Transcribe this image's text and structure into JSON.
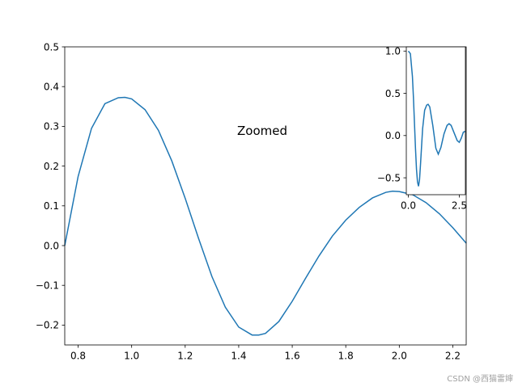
{
  "chart_data": [
    {
      "type": "line",
      "role": "main",
      "title": "",
      "xlabel": "",
      "ylabel": "",
      "xlim": [
        0.75,
        2.25
      ],
      "ylim": [
        -0.25,
        0.5
      ],
      "xticks": [
        "0.8",
        "1.0",
        "1.2",
        "1.4",
        "1.6",
        "1.8",
        "2.0",
        "2.2"
      ],
      "yticks": [
        "0.5",
        "0.4",
        "0.3",
        "0.2",
        "0.1",
        "0.0",
        "−0.1",
        "−0.2"
      ],
      "annotation": "Zoomed",
      "series": [
        {
          "color": "#1f77b4",
          "x": [
            0.75,
            0.8,
            0.85,
            0.9,
            0.95,
            0.975,
            1.0,
            1.05,
            1.1,
            1.15,
            1.2,
            1.25,
            1.3,
            1.35,
            1.4,
            1.45,
            1.475,
            1.5,
            1.55,
            1.6,
            1.65,
            1.7,
            1.75,
            1.8,
            1.85,
            1.9,
            1.95,
            1.975,
            2.0,
            2.05,
            2.1,
            2.15,
            2.2,
            2.25
          ],
          "y": [
            0.0,
            0.174,
            0.295,
            0.357,
            0.372,
            0.373,
            0.369,
            0.342,
            0.29,
            0.213,
            0.119,
            0.018,
            -0.078,
            -0.155,
            -0.205,
            -0.225,
            -0.225,
            -0.221,
            -0.191,
            -0.14,
            -0.082,
            -0.026,
            0.024,
            0.064,
            0.096,
            0.12,
            0.134,
            0.137,
            0.136,
            0.128,
            0.108,
            0.08,
            0.045,
            0.006
          ]
        }
      ]
    },
    {
      "type": "line",
      "role": "inset",
      "title": "",
      "xlabel": "",
      "ylabel": "",
      "xlim": [
        -0.1,
        2.8
      ],
      "ylim": [
        -0.7,
        1.05
      ],
      "xticks": [
        "0.0",
        "2.5"
      ],
      "yticks": [
        "1.0",
        "0.5",
        "0.0",
        "−0.5"
      ],
      "series": [
        {
          "color": "#1f77b4",
          "x": [
            0.0,
            0.1,
            0.2,
            0.25,
            0.3,
            0.35,
            0.4,
            0.45,
            0.5,
            0.55,
            0.6,
            0.7,
            0.8,
            0.9,
            0.97,
            1.05,
            1.2,
            1.35,
            1.47,
            1.6,
            1.75,
            1.9,
            2.0,
            2.1,
            2.25,
            2.4,
            2.5,
            2.6,
            2.7,
            2.8
          ],
          "y": [
            1.0,
            0.97,
            0.7,
            0.45,
            0.15,
            -0.15,
            -0.4,
            -0.55,
            -0.6,
            -0.52,
            -0.33,
            0.08,
            0.3,
            0.36,
            0.37,
            0.34,
            0.12,
            -0.15,
            -0.22,
            -0.14,
            0.02,
            0.12,
            0.14,
            0.12,
            0.03,
            -0.06,
            -0.08,
            -0.03,
            0.04,
            0.05
          ]
        }
      ]
    }
  ],
  "watermark": "CSDN @西猫雷婶"
}
